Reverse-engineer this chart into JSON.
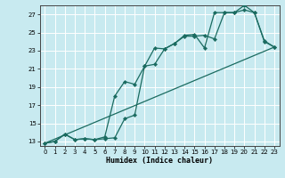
{
  "xlabel": "Humidex (Indice chaleur)",
  "background_color": "#c8eaf0",
  "grid_color": "#ffffff",
  "line_color": "#1a6b60",
  "xlim": [
    -0.5,
    23.5
  ],
  "ylim": [
    12.5,
    28.0
  ],
  "xticks": [
    0,
    1,
    2,
    3,
    4,
    5,
    6,
    7,
    8,
    9,
    10,
    11,
    12,
    13,
    14,
    15,
    16,
    17,
    18,
    19,
    20,
    21,
    22,
    23
  ],
  "yticks": [
    13,
    15,
    17,
    19,
    21,
    23,
    25,
    27
  ],
  "line1_x": [
    0,
    1,
    2,
    3,
    4,
    5,
    6,
    7,
    8,
    9,
    10,
    11,
    12,
    13,
    14,
    15,
    16,
    17,
    18,
    19,
    20,
    21,
    22,
    23
  ],
  "line1_y": [
    12.8,
    13.0,
    13.8,
    13.2,
    13.3,
    13.2,
    13.3,
    13.4,
    15.5,
    15.9,
    21.3,
    21.5,
    23.2,
    23.8,
    24.6,
    24.6,
    24.7,
    24.3,
    27.2,
    27.2,
    28.0,
    27.2,
    24.0,
    23.4
  ],
  "line2_x": [
    0,
    1,
    2,
    3,
    4,
    5,
    6,
    7,
    8,
    9,
    10,
    11,
    12,
    13,
    14,
    15,
    16,
    17,
    18,
    19,
    20,
    21,
    22,
    23
  ],
  "line2_y": [
    12.8,
    13.0,
    13.8,
    13.2,
    13.3,
    13.2,
    13.5,
    18.0,
    19.6,
    19.3,
    21.3,
    23.3,
    23.2,
    23.8,
    24.7,
    24.8,
    23.3,
    27.2,
    27.2,
    27.2,
    27.5,
    27.2,
    24.1,
    23.4
  ],
  "line3_x": [
    0,
    23
  ],
  "line3_y": [
    12.8,
    23.4
  ]
}
